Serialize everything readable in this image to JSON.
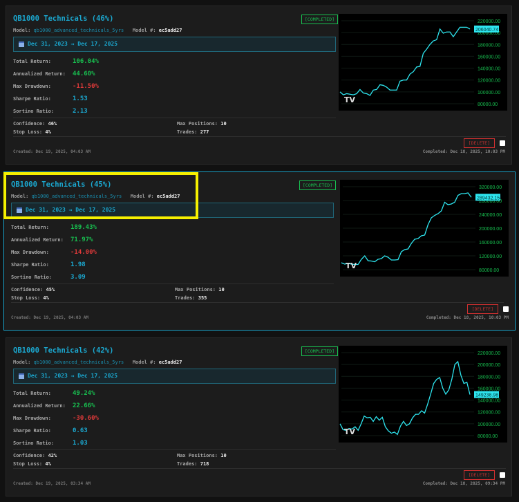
{
  "labels": {
    "model": "Model:",
    "model_num": "Model #:",
    "total_return": "Total Return:",
    "annualized_return": "Annualized Return:",
    "max_drawdown": "Max Drawdown:",
    "sharpe": "Sharpe Ratio:",
    "sortino": "Sortino Ratio:",
    "confidence": "Confidence:",
    "max_positions": "Max Positions:",
    "stop_loss": "Stop Loss:",
    "trades": "Trades:",
    "delete": "[DELETE]"
  },
  "cards": [
    {
      "title": "QB1000 Technicals (46%)",
      "status": "[COMPLETED]",
      "model": "qb1000_advanced_technicals_5yrs",
      "model_num": "ec5add27",
      "date_range": "Dec 31, 2023 → Dec 17, 2025",
      "total_return": "106.04%",
      "annualized_return": "44.60%",
      "max_drawdown": "-11.50%",
      "sharpe": "1.53",
      "sortino": "2.13",
      "confidence": "46%",
      "max_positions": "10",
      "stop_loss": "4%",
      "trades": "277",
      "created": "Created: Dec 19, 2025, 04:03 AM",
      "completed": "Completed: Dec 18, 2025, 10:03 PM",
      "selected": false
    },
    {
      "title": "QB1000 Technicals (45%)",
      "status": "[COMPLETED]",
      "model": "qb1000_advanced_technicals_5yrs",
      "model_num": "ec5add27",
      "date_range": "Dec 31, 2023 → Dec 17, 2025",
      "total_return": "189.43%",
      "annualized_return": "71.97%",
      "max_drawdown": "-14.00%",
      "sharpe": "1.98",
      "sortino": "3.09",
      "confidence": "45%",
      "max_positions": "10",
      "stop_loss": "4%",
      "trades": "355",
      "created": "Created: Dec 19, 2025, 04:03 AM",
      "completed": "Completed: Dec 18, 2025, 10:03 PM",
      "selected": true
    },
    {
      "title": "QB1000 Technicals (42%)",
      "status": "[COMPLETED]",
      "model": "qb1000_advanced_technicals_5yrs",
      "model_num": "ec5add27",
      "date_range": "Dec 31, 2023 → Dec 17, 2025",
      "total_return": "49.24%",
      "annualized_return": "22.66%",
      "max_drawdown": "-30.60%",
      "sharpe": "0.63",
      "sortino": "1.03",
      "confidence": "42%",
      "max_positions": "10",
      "stop_loss": "4%",
      "trades": "718",
      "created": "Created: Dec 19, 2025, 03:34 AM",
      "completed": "Completed: Dec 18, 2025, 09:34 PM",
      "selected": false
    }
  ],
  "chart_data": [
    {
      "type": "line",
      "ylim": [
        80000,
        220000
      ],
      "ticks": [
        80000,
        100000,
        120000,
        140000,
        160000,
        180000,
        200000,
        220000
      ],
      "last_label": "206040.74",
      "color": "#2ee6f0",
      "values": [
        100000,
        95000,
        97000,
        96000,
        95000,
        97000,
        104000,
        98000,
        97000,
        94000,
        103000,
        104000,
        112000,
        111000,
        108000,
        103000,
        103000,
        103000,
        118000,
        120000,
        120000,
        130000,
        134000,
        142000,
        143000,
        165000,
        172000,
        180000,
        186000,
        188000,
        206000,
        199000,
        201000,
        201000,
        193000,
        201000,
        209000,
        209000,
        209000,
        206040.74
      ]
    },
    {
      "type": "line",
      "ylim": [
        80000,
        320000
      ],
      "ticks": [
        80000,
        120000,
        160000,
        200000,
        240000,
        280000,
        320000
      ],
      "last_label": "289432.15",
      "color": "#2ee6f0",
      "values": [
        100000,
        96000,
        98000,
        96000,
        95000,
        95000,
        110000,
        120000,
        106000,
        105000,
        103000,
        110000,
        112000,
        120000,
        116000,
        108000,
        108000,
        109000,
        132000,
        138000,
        140000,
        156000,
        168000,
        170000,
        178000,
        180000,
        210000,
        230000,
        237000,
        242000,
        250000,
        275000,
        268000,
        270000,
        275000,
        295000,
        300000,
        300000,
        302000,
        289432.15
      ]
    },
    {
      "type": "line",
      "ylim": [
        80000,
        220000
      ],
      "ticks": [
        80000,
        100000,
        120000,
        140000,
        160000,
        180000,
        200000,
        220000
      ],
      "last_label": "149238.98",
      "color": "#2ee6f0",
      "values": [
        100000,
        90000,
        89000,
        92000,
        91000,
        95000,
        89000,
        100000,
        113000,
        110000,
        111000,
        104000,
        112000,
        106000,
        111000,
        95000,
        88000,
        84000,
        86000,
        82000,
        96000,
        104000,
        97000,
        100000,
        110000,
        116000,
        116000,
        122000,
        118000,
        133000,
        150000,
        168000,
        175000,
        178000,
        160000,
        150000,
        157000,
        175000,
        200000,
        205000,
        182000,
        168000,
        170000,
        149238.98
      ]
    }
  ]
}
